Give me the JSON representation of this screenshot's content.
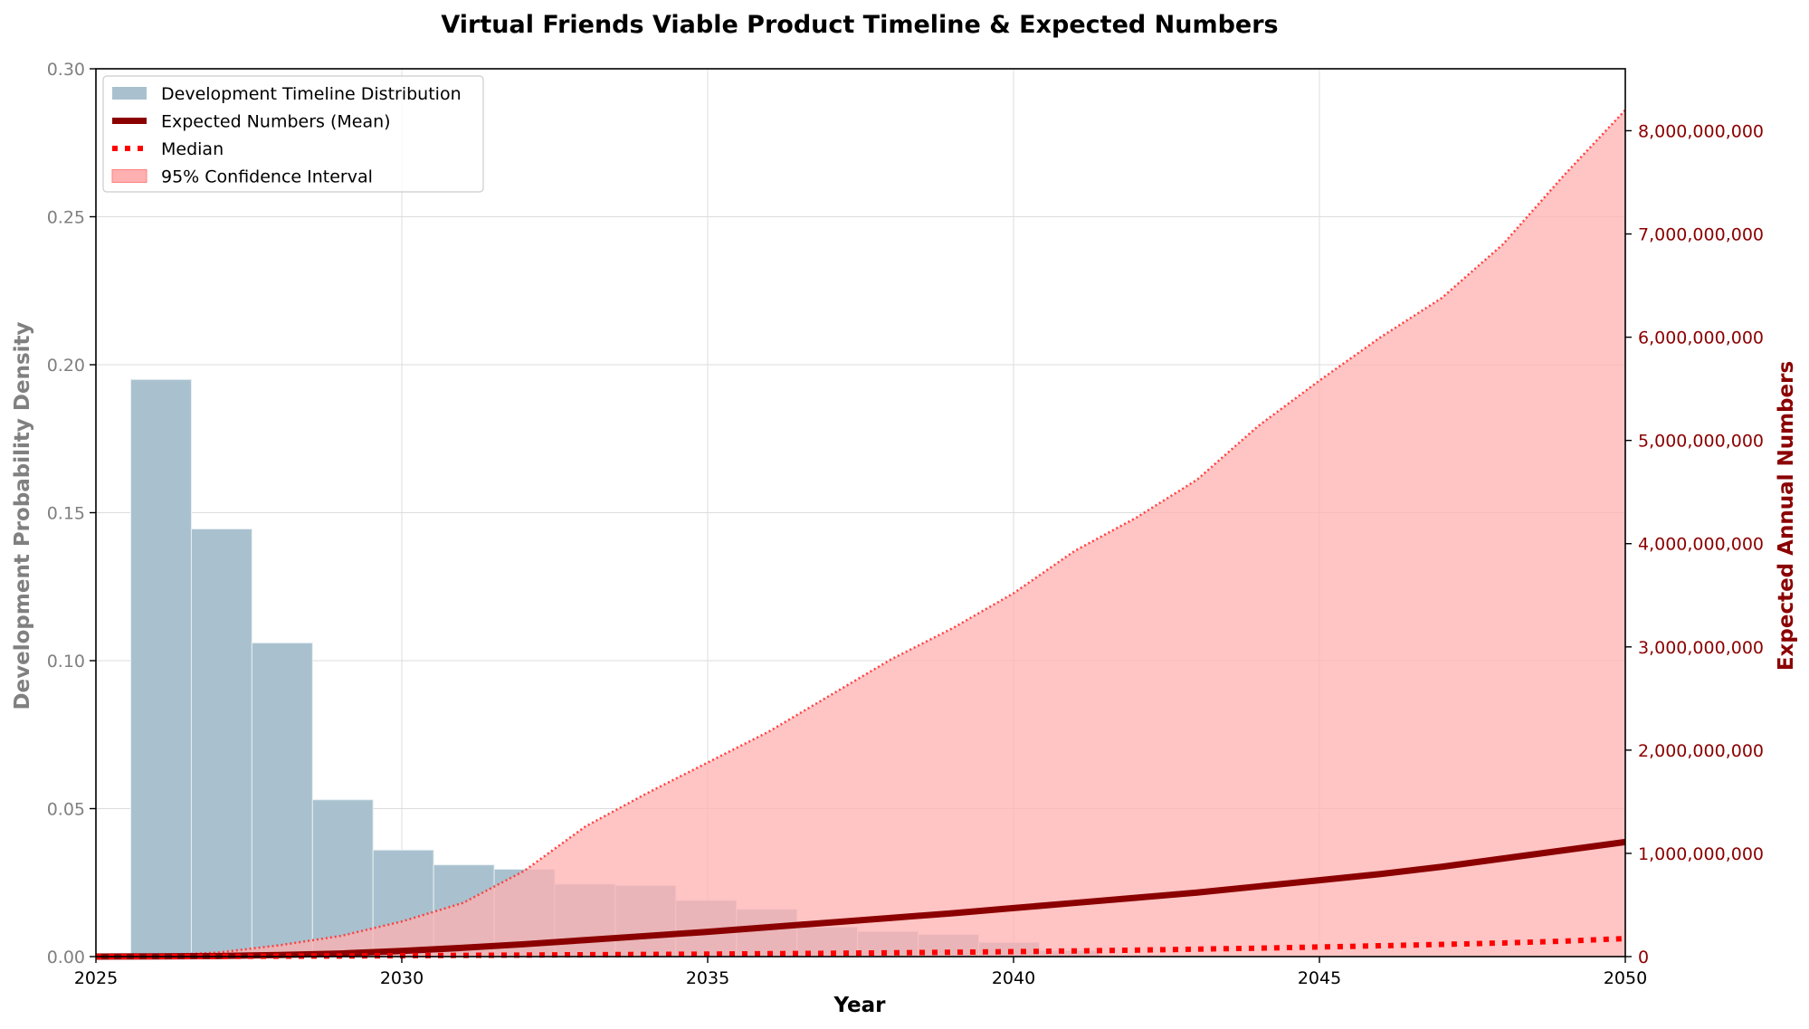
{
  "chart_data": {
    "type": "bar+line",
    "title": "Virtual Friends Viable Product Timeline & Expected Numbers",
    "xlabel": "Year",
    "ylabel_left": "Development Probability Density",
    "ylabel_right": "Expected Annual Numbers",
    "xlim": [
      2025,
      2050
    ],
    "ylim_left": [
      0,
      0.3
    ],
    "ylim_right": [
      0,
      8600000000
    ],
    "xticks": [
      2025,
      2030,
      2035,
      2040,
      2045,
      2050
    ],
    "xtick_labels": [
      "2025",
      "2030",
      "2035",
      "2040",
      "2045",
      "2050"
    ],
    "yticks_left": [
      0,
      0.05,
      0.1,
      0.15,
      0.2,
      0.25,
      0.3
    ],
    "ytick_labels_left": [
      "0.00",
      "0.05",
      "0.10",
      "0.15",
      "0.20",
      "0.25",
      "0.30"
    ],
    "yticks_right": [
      0,
      1000000000,
      2000000000,
      3000000000,
      4000000000,
      5000000000,
      6000000000,
      7000000000,
      8000000000
    ],
    "ytick_labels_right": [
      "0",
      "1,000,000,000",
      "2,000,000,000",
      "3,000,000,000",
      "4,000,000,000",
      "5,000,000,000",
      "6,000,000,000",
      "7,000,000,000",
      "8,000,000,000"
    ],
    "grid": true,
    "legend_position": "top-left",
    "legend": [
      {
        "label": "Development Timeline Distribution",
        "kind": "bar",
        "color": "#a9c1ce"
      },
      {
        "label": "Expected Numbers (Mean)",
        "kind": "line",
        "color": "#8b0000"
      },
      {
        "label": "Median",
        "kind": "dotted",
        "color": "#ff0000"
      },
      {
        "label": "95% Confidence Interval",
        "kind": "area",
        "color": "#ffb0b0"
      }
    ],
    "histogram": {
      "name": "Development Timeline Distribution",
      "color": "#a9c1ce",
      "bin_start": 2025.57,
      "bin_width": 0.99,
      "values": [
        0.195,
        0.1445,
        0.106,
        0.053,
        0.036,
        0.031,
        0.0295,
        0.0245,
        0.024,
        0.019,
        0.016,
        0.01,
        0.0085,
        0.0075,
        0.0048,
        0.002
      ]
    },
    "series": [
      {
        "name": "Expected Numbers (Mean)",
        "color": "#8b0000",
        "x": [
          2025,
          2026,
          2027,
          2028,
          2029,
          2030,
          2031,
          2032,
          2033,
          2034,
          2035,
          2036,
          2037,
          2038,
          2039,
          2040,
          2041,
          2042,
          2043,
          2044,
          2045,
          2046,
          2047,
          2048,
          2049,
          2050
        ],
        "y": [
          0,
          2000000,
          6000000,
          15000000,
          30000000,
          55000000,
          85000000,
          120000000,
          160000000,
          200000000,
          240000000,
          285000000,
          330000000,
          375000000,
          420000000,
          470000000,
          520000000,
          570000000,
          620000000,
          680000000,
          740000000,
          800000000,
          870000000,
          950000000,
          1030000000,
          1110000000
        ]
      },
      {
        "name": "Median",
        "color": "#ff0000",
        "x": [
          2025,
          2026,
          2027,
          2028,
          2029,
          2030,
          2031,
          2032,
          2033,
          2034,
          2035,
          2036,
          2037,
          2038,
          2039,
          2040,
          2041,
          2042,
          2043,
          2044,
          2045,
          2046,
          2047,
          2048,
          2049,
          2050
        ],
        "y": [
          0,
          1000000,
          2000000,
          4000000,
          6000000,
          9000000,
          12000000,
          15000000,
          18000000,
          21000000,
          24000000,
          28000000,
          32000000,
          37000000,
          42000000,
          48000000,
          55000000,
          63000000,
          72000000,
          82000000,
          93000000,
          105000000,
          118000000,
          132000000,
          150000000,
          175000000
        ]
      }
    ],
    "confidence_interval": {
      "name": "95% Confidence Interval",
      "color": "#ffb0b0",
      "edge_color": "#ff4040",
      "x": [
        2025,
        2026,
        2027,
        2028,
        2029,
        2030,
        2031,
        2032,
        2033,
        2034,
        2035,
        2036,
        2037,
        2038,
        2039,
        2040,
        2041,
        2042,
        2043,
        2044,
        2045,
        2046,
        2047,
        2048,
        2049,
        2050
      ],
      "lower": [
        0,
        0,
        0,
        0,
        0,
        0,
        0,
        0,
        0,
        0,
        0,
        0,
        0,
        0,
        0,
        0,
        0,
        0,
        0,
        0,
        0,
        0,
        0,
        0,
        0,
        0
      ],
      "upper": [
        0,
        10000000,
        40000000,
        110000000,
        200000000,
        340000000,
        520000000,
        830000000,
        1260000000,
        1580000000,
        1880000000,
        2180000000,
        2530000000,
        2880000000,
        3180000000,
        3520000000,
        3930000000,
        4250000000,
        4620000000,
        5140000000,
        5580000000,
        6000000000,
        6380000000,
        6900000000,
        7570000000,
        8200000000
      ]
    }
  }
}
